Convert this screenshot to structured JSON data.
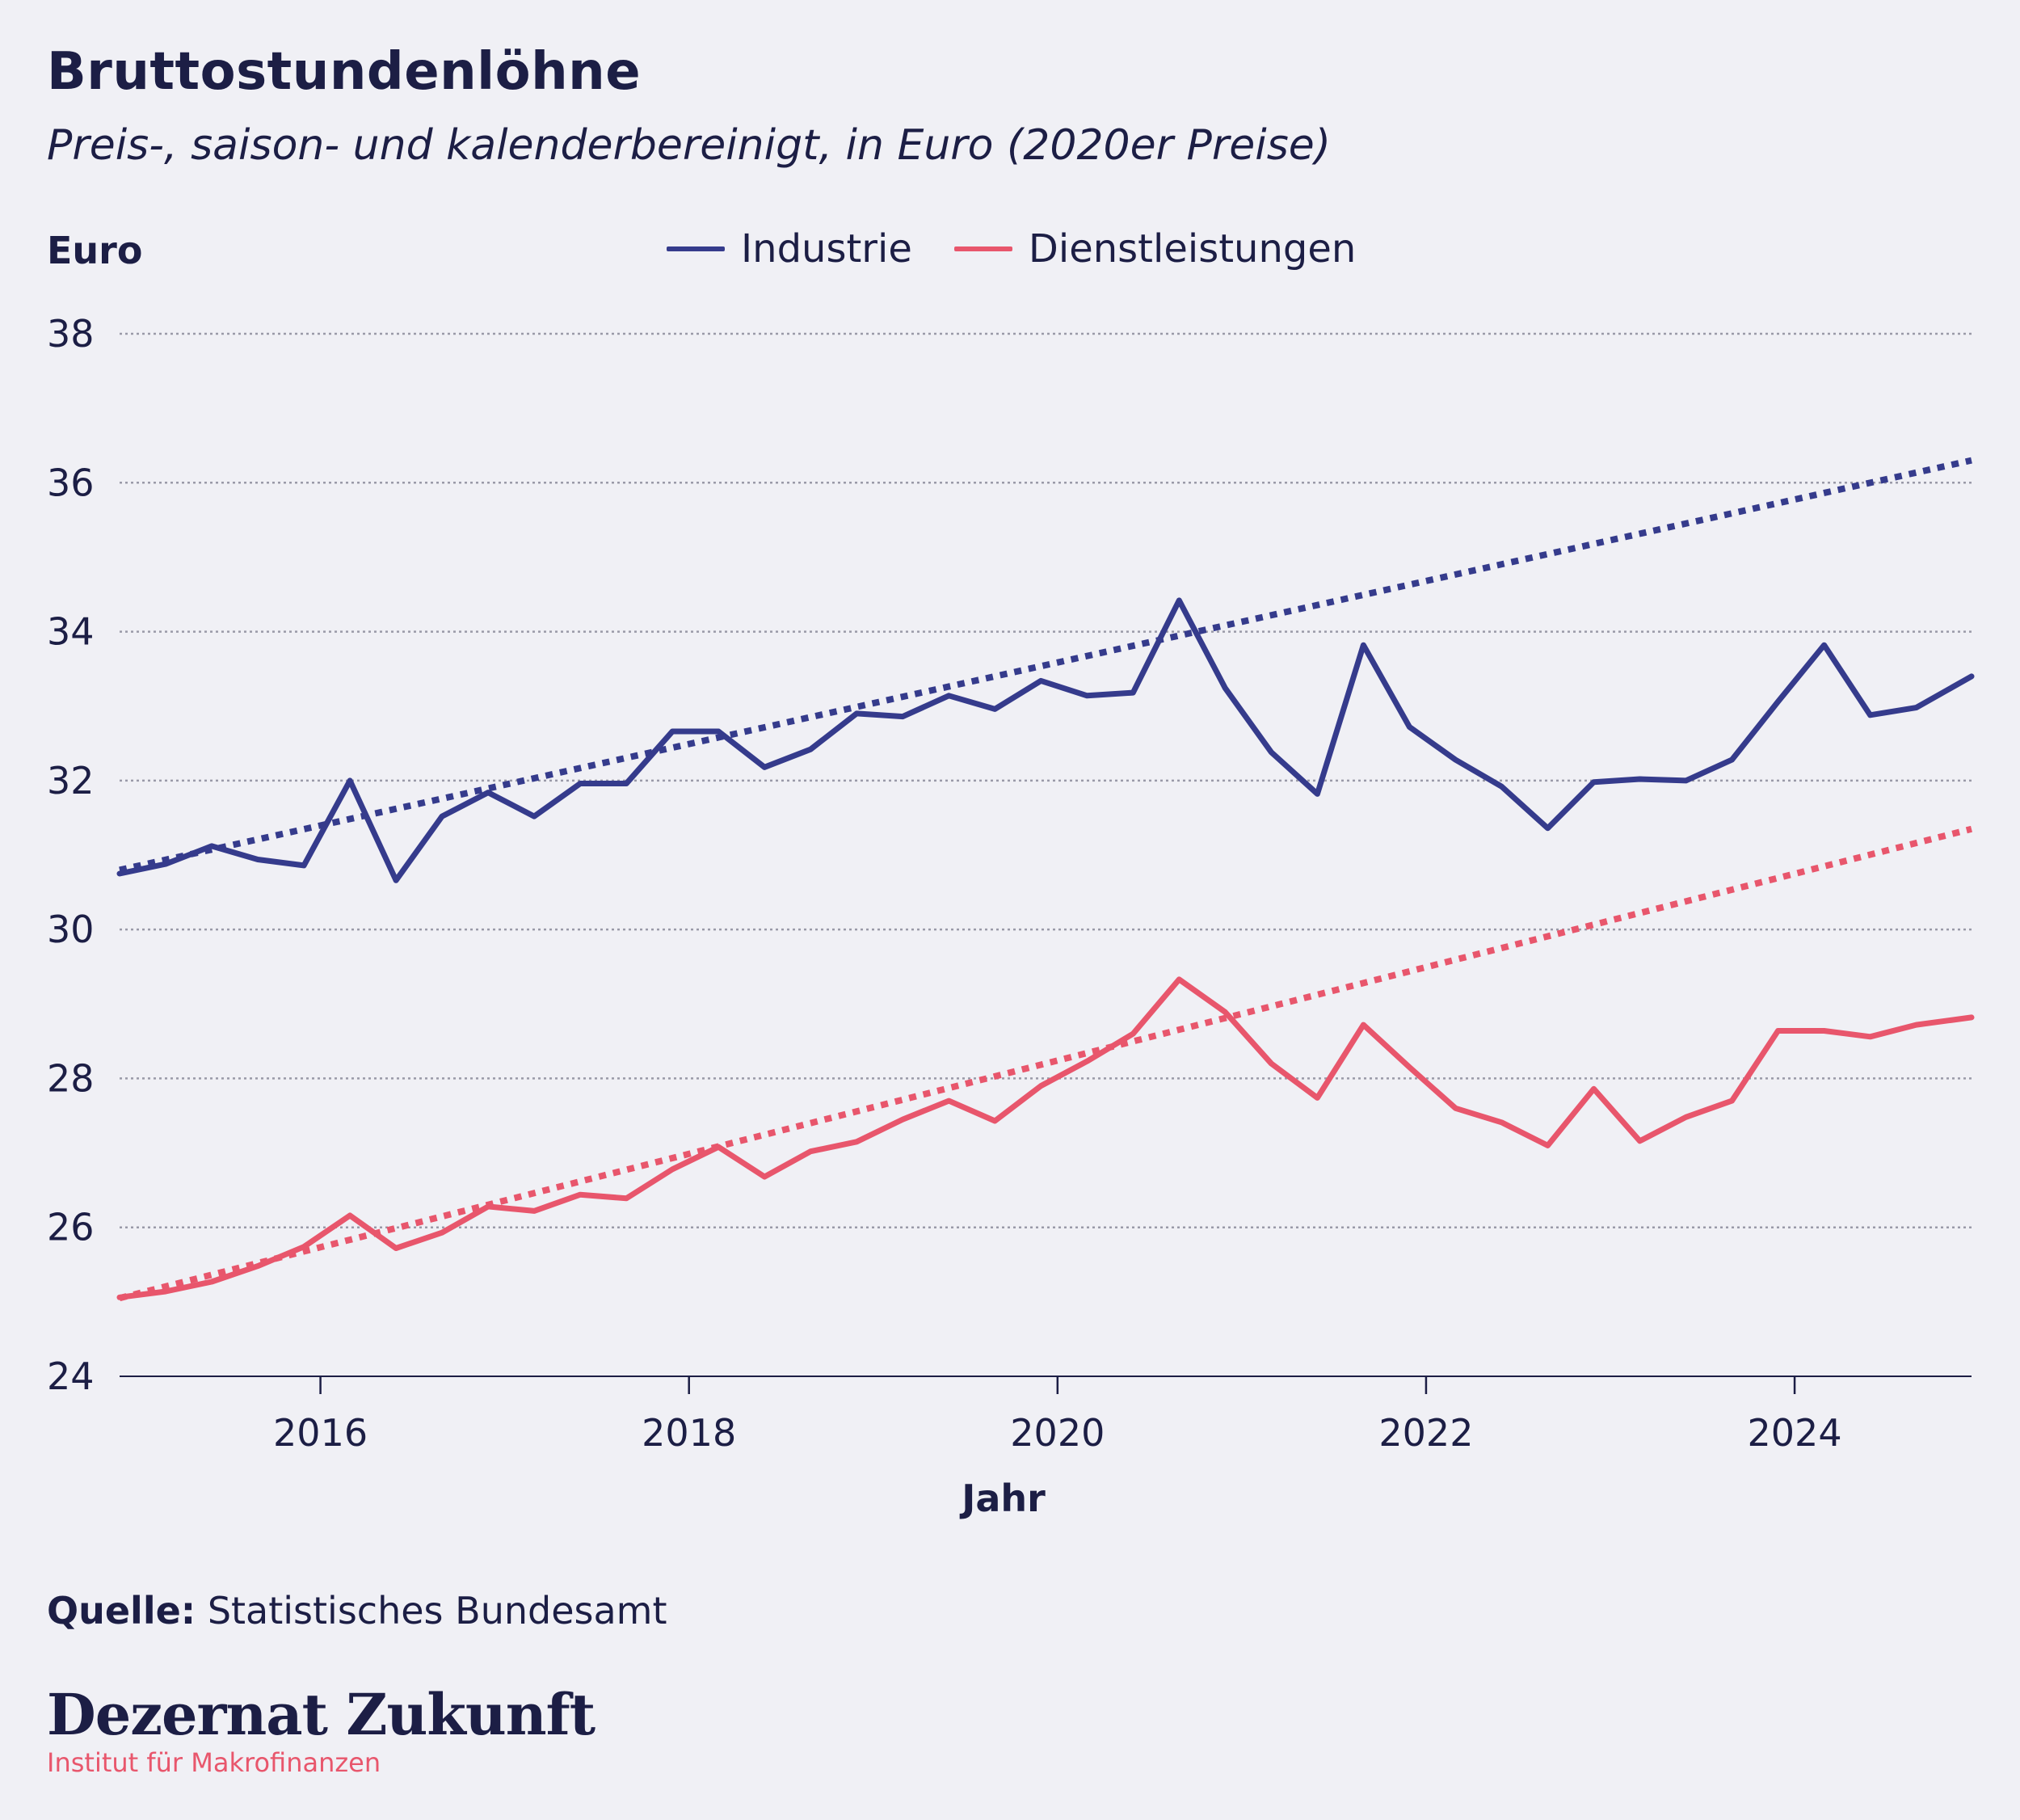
{
  "header": {
    "title": "Bruttostundenlöhne",
    "subtitle": "Preis-, saison- und kalenderbereinigt, in Euro (2020er Preise)"
  },
  "footer": {
    "source_label": "Quelle:",
    "source_text": "Statistisches Bundesamt",
    "brand": "Dezernat Zukunft",
    "brand_sub": "Institut für Makrofinanzen"
  },
  "colors": {
    "industrie": "#353b8c",
    "dienstleistungen": "#e8566c",
    "text": "#1c1e45",
    "grid": "#9a9aa8"
  },
  "chart_data": {
    "type": "line",
    "ylabel": "Euro",
    "xlabel": "Jahr",
    "xlim": [
      2014.91,
      2024.96
    ],
    "ylim": [
      24,
      38
    ],
    "yticks": [
      24,
      26,
      28,
      30,
      32,
      34,
      36,
      38
    ],
    "xticks": [
      2016,
      2018,
      2020,
      2022,
      2024
    ],
    "grid": "horizontal-dotted",
    "legend": "top",
    "x": [
      2014.91,
      2015.16,
      2015.41,
      2015.66,
      2015.91,
      2016.16,
      2016.41,
      2016.66,
      2016.91,
      2017.16,
      2017.41,
      2017.66,
      2017.91,
      2018.16,
      2018.41,
      2018.66,
      2018.91,
      2019.16,
      2019.41,
      2019.66,
      2019.91,
      2020.16,
      2020.41,
      2020.66,
      2020.91,
      2021.16,
      2021.41,
      2021.66,
      2021.91,
      2022.16,
      2022.41,
      2022.66,
      2022.91,
      2023.16,
      2023.41,
      2023.66,
      2023.91,
      2024.16,
      2024.41,
      2024.66,
      2024.96
    ],
    "series": [
      {
        "name": "Industrie",
        "values": [
          30.75,
          30.88,
          31.12,
          30.94,
          30.86,
          32.0,
          30.66,
          31.52,
          31.84,
          31.52,
          31.96,
          31.96,
          32.66,
          32.66,
          32.18,
          32.42,
          32.9,
          32.86,
          33.14,
          32.96,
          33.34,
          33.14,
          33.18,
          34.42,
          33.24,
          32.38,
          31.82,
          33.82,
          32.72,
          32.28,
          31.92,
          31.36,
          31.98,
          32.02,
          32.0,
          32.28,
          33.06,
          33.82,
          32.88,
          32.98,
          33.4
        ]
      },
      {
        "name": "Dienstleistungen",
        "values": [
          25.06,
          25.14,
          25.27,
          25.48,
          25.74,
          26.16,
          25.72,
          25.93,
          26.28,
          26.22,
          26.44,
          26.39,
          26.78,
          27.08,
          26.68,
          27.02,
          27.15,
          27.45,
          27.7,
          27.43,
          27.9,
          28.23,
          28.6,
          29.33,
          28.89,
          28.2,
          27.74,
          28.72,
          28.15,
          27.6,
          27.41,
          27.1,
          27.86,
          27.16,
          27.48,
          27.7,
          28.64,
          28.64,
          28.56,
          28.72,
          28.82
        ]
      }
    ],
    "trendlines": [
      {
        "series": "Industrie",
        "x": [
          2014.91,
          2024.96
        ],
        "y": [
          30.8,
          36.3
        ]
      },
      {
        "series": "Dienstleistungen",
        "x": [
          2014.91,
          2024.96
        ],
        "y": [
          25.05,
          31.35
        ]
      }
    ]
  }
}
